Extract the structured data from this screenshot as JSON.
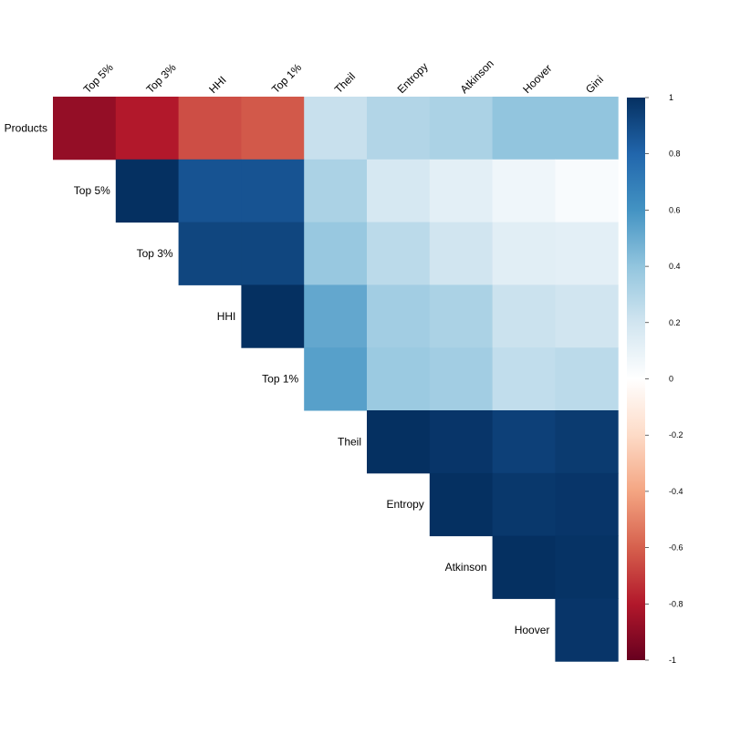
{
  "chart_data": {
    "type": "heatmap",
    "subtype": "upper-triangular correlation matrix",
    "row_labels": [
      "Products",
      "Top 5%",
      "Top 3%",
      "HHI",
      "Top 1%",
      "Theil",
      "Entropy",
      "Atkinson",
      "Hoover"
    ],
    "col_labels": [
      "Top 5%",
      "Top 3%",
      "HHI",
      "Top 1%",
      "Theil",
      "Entropy",
      "Atkinson",
      "Hoover",
      "Gini"
    ],
    "values": [
      [
        -0.88,
        -0.8,
        -0.65,
        -0.62,
        0.23,
        0.3,
        0.32,
        0.4,
        0.4
      ],
      [
        1.0,
        0.87,
        0.87,
        0.32,
        0.18,
        0.12,
        0.07,
        0.03
      ],
      [
        0.92,
        0.92,
        0.38,
        0.27,
        0.2,
        0.13,
        0.12
      ],
      [
        1.0,
        0.52,
        0.35,
        0.32,
        0.22,
        0.2
      ],
      [
        0.55,
        0.37,
        0.35,
        0.25,
        0.27
      ],
      [
        1.0,
        0.98,
        0.94,
        0.96
      ],
      [
        1.0,
        0.97,
        0.98
      ],
      [
        1.0,
        0.99
      ],
      [
        0.98
      ]
    ],
    "colorbar": {
      "range": [
        -1,
        1
      ],
      "ticks": [
        "1",
        "0.8",
        "0.6",
        "0.4",
        "0.2",
        "0",
        "-0.2",
        "-0.4",
        "-0.6",
        "-0.8",
        "-1"
      ],
      "colors": {
        "-1": "#67001f",
        "-0.8": "#b2182b",
        "-0.6": "#d6604d",
        "-0.4": "#f4a582",
        "-0.2": "#fddbc7",
        "0": "#ffffff",
        "0.2": "#d1e5f0",
        "0.4": "#92c5de",
        "0.6": "#4393c3",
        "0.8": "#2166ac",
        "1": "#053061"
      }
    }
  }
}
